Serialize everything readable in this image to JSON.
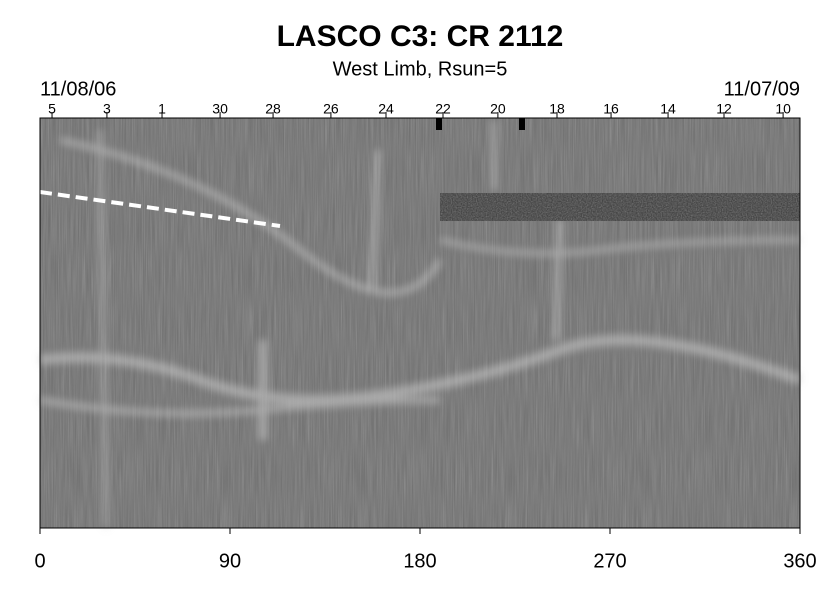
{
  "chart_data": {
    "type": "synoptic-map",
    "title": "LASCO C3: CR 2112",
    "subtitle": "West Limb, Rsun=5",
    "start_label": "11/08/06",
    "end_label": "11/07/09",
    "xlim": [
      0,
      360
    ],
    "xticks": [
      0,
      90,
      180,
      270,
      360
    ],
    "x2ticks": [
      {
        "value": 5.7,
        "label": "5"
      },
      {
        "value": 31.7,
        "label": "3"
      },
      {
        "value": 57.8,
        "label": "1"
      },
      {
        "value": 85.3,
        "label": "30"
      },
      {
        "value": 110.4,
        "label": "28"
      },
      {
        "value": 137.8,
        "label": "26"
      },
      {
        "value": 163.9,
        "label": "24"
      },
      {
        "value": 190.9,
        "label": "22"
      },
      {
        "value": 216.9,
        "label": "20"
      },
      {
        "value": 244.9,
        "label": "18"
      },
      {
        "value": 270.5,
        "label": "16"
      },
      {
        "value": 297.5,
        "label": "14"
      },
      {
        "value": 324,
        "label": "12"
      },
      {
        "value": 352,
        "label": "10"
      }
    ]
  }
}
